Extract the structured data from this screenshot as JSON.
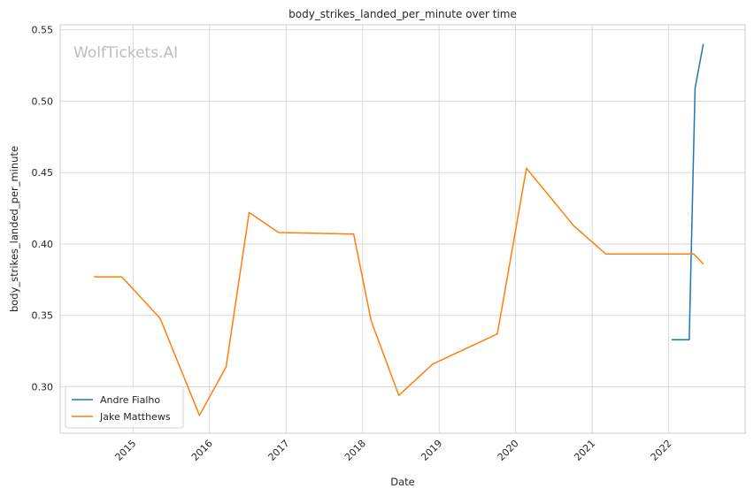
{
  "chart_data": {
    "type": "line",
    "title": "body_strikes_landed_per_minute over time",
    "xlabel": "Date",
    "ylabel": "body_strikes_landed_per_minute",
    "watermark": "WolfTickets.AI",
    "xlim": [
      "2014-01-18",
      "2023-01-01"
    ],
    "ylim": [
      0.2675,
      0.5535
    ],
    "x_ticks": [
      "2015",
      "2016",
      "2017",
      "2018",
      "2019",
      "2020",
      "2021",
      "2022"
    ],
    "y_ticks": [
      "0.30",
      "0.35",
      "0.40",
      "0.45",
      "0.50",
      "0.55"
    ],
    "grid": true,
    "legend": "lower-left",
    "series": [
      {
        "name": "Andre Fialho",
        "color": "#1f77b4",
        "points": [
          [
            "2022-01-15",
            0.333
          ],
          [
            "2022-04-09",
            0.333
          ],
          [
            "2022-05-07",
            0.509
          ],
          [
            "2022-06-15",
            0.54
          ]
        ]
      },
      {
        "name": "Jake Matthews",
        "color": "#ff7f0e",
        "points": [
          [
            "2014-06-28",
            0.377
          ],
          [
            "2014-11-08",
            0.377
          ],
          [
            "2015-05-10",
            0.348
          ],
          [
            "2015-11-14",
            0.28
          ],
          [
            "2016-03-20",
            0.314
          ],
          [
            "2016-07-08",
            0.422
          ],
          [
            "2016-11-26",
            0.408
          ],
          [
            "2017-11-19",
            0.407
          ],
          [
            "2018-02-11",
            0.346
          ],
          [
            "2018-06-23",
            0.294
          ],
          [
            "2018-12-02",
            0.316
          ],
          [
            "2019-10-06",
            0.337
          ],
          [
            "2020-02-22",
            0.453
          ],
          [
            "2020-10-03",
            0.413
          ],
          [
            "2021-03-07",
            0.393
          ],
          [
            "2022-05-01",
            0.393
          ],
          [
            "2022-06-15",
            0.386
          ]
        ]
      }
    ]
  }
}
